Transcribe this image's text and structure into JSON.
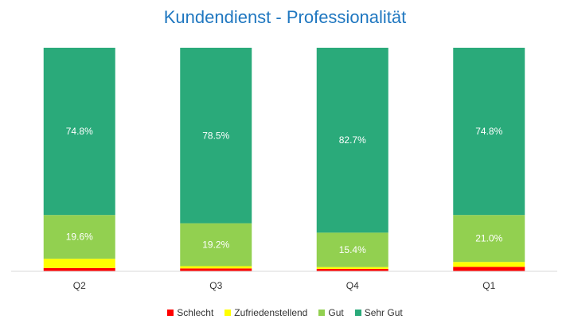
{
  "chart_data": {
    "type": "bar",
    "stacked": true,
    "title": "Kundendienst - Professionalität",
    "categories": [
      "Q2",
      "Q3",
      "Q4",
      "Q1"
    ],
    "series": [
      {
        "name": "Schlecht",
        "color": "#ff0000",
        "values": [
          1.5,
          1.3,
          1.1,
          2.0
        ]
      },
      {
        "name": "Zufriedenstellend",
        "color": "#ffff00",
        "values": [
          4.1,
          1.0,
          0.8,
          2.2
        ]
      },
      {
        "name": "Gut",
        "color": "#92d050",
        "values": [
          19.6,
          19.2,
          15.4,
          21.0
        ]
      },
      {
        "name": "Sehr Gut",
        "color": "#2aaa7a",
        "values": [
          74.8,
          78.5,
          82.7,
          74.8
        ]
      }
    ],
    "data_labels": {
      "Gut": [
        "19.6%",
        "19.2%",
        "15.4%",
        "21.0%"
      ],
      "Sehr Gut": [
        "74.8%",
        "78.5%",
        "82.7%",
        "74.8%"
      ]
    },
    "ylim": [
      0,
      100
    ],
    "legend": "bottom",
    "grid": false
  }
}
